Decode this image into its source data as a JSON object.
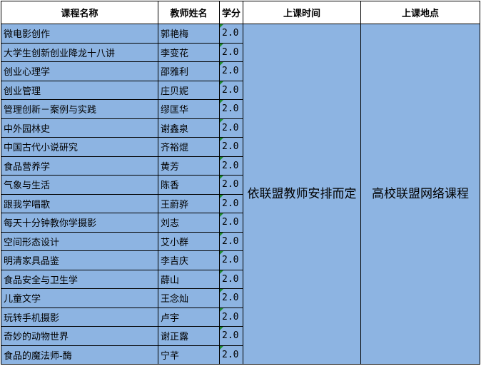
{
  "headers": {
    "course": "课程名称",
    "teacher": "教师姓名",
    "credit": "学分",
    "time": "上课时间",
    "location": "上课地点"
  },
  "time_value": "依联盟教师安排而定",
  "location_value": "高校联盟网络课程",
  "colors": {
    "cell_fill": "#8DB4E2",
    "marker": "#1E8C2E"
  },
  "rows": [
    {
      "course": "微电影创作",
      "teacher": "郭艳梅",
      "credit": "2.0"
    },
    {
      "course": "大学生创新创业降龙十八讲",
      "teacher": "李变花",
      "credit": "2.0"
    },
    {
      "course": "创业心理学",
      "teacher": "邵雅利",
      "credit": "2.0"
    },
    {
      "course": "创业管理",
      "teacher": "庄贝妮",
      "credit": "2.0"
    },
    {
      "course": "管理创新－案例与实践",
      "teacher": "缪匡华",
      "credit": "2.0"
    },
    {
      "course": "中外园林史",
      "teacher": "谢鑫泉",
      "credit": "2.0"
    },
    {
      "course": "中国古代小说研究",
      "teacher": "齐裕焜",
      "credit": "2.0"
    },
    {
      "course": "食品营养学",
      "teacher": "黄芳",
      "credit": "2.0"
    },
    {
      "course": "气象与生活",
      "teacher": "陈香",
      "credit": "2.0"
    },
    {
      "course": "跟我学唱歌",
      "teacher": "王蔚骅",
      "credit": "2.0"
    },
    {
      "course": "每天十分钟教你学摄影",
      "teacher": "刘志",
      "credit": "2.0"
    },
    {
      "course": "空间形态设计",
      "teacher": "艾小群",
      "credit": "2.0"
    },
    {
      "course": "明清家具品鉴",
      "teacher": "李吉庆",
      "credit": "2.0"
    },
    {
      "course": "食品安全与卫生学",
      "teacher": "薛山",
      "credit": "2.0"
    },
    {
      "course": "儿童文学",
      "teacher": "王念灿",
      "credit": "2.0"
    },
    {
      "course": "玩转手机摄影",
      "teacher": "卢宇",
      "credit": "2.0"
    },
    {
      "course": "奇妙的动物世界",
      "teacher": "谢正露",
      "credit": "2.0"
    },
    {
      "course": "食品的魔法师-酶",
      "teacher": "宁芊",
      "credit": "2.0"
    }
  ]
}
